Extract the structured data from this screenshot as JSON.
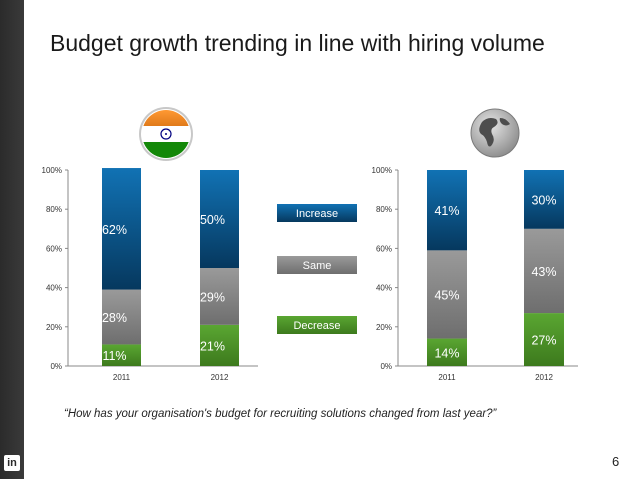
{
  "slide": {
    "title": "Budget growth trending in line with hiring volume",
    "quote": "“How has your organisation's budget for recruiting solutions changed from last year?”",
    "page_number": "6",
    "logo_text": "in"
  },
  "legend": {
    "increase": "Increase",
    "same": "Same",
    "decrease": "Decrease"
  },
  "colors": {
    "increase": "#0b5a8f",
    "same": "#8c8c8c",
    "decrease": "#4e9628"
  },
  "chart_data": [
    {
      "type": "bar",
      "stacked": true,
      "percent": true,
      "region": "India",
      "categories": [
        "2011",
        "2012"
      ],
      "series": [
        {
          "name": "Decrease",
          "values": [
            11,
            21
          ]
        },
        {
          "name": "Same",
          "values": [
            28,
            29
          ]
        },
        {
          "name": "Increase",
          "values": [
            62,
            50
          ]
        }
      ],
      "ylim": [
        0,
        100
      ],
      "yticks": [
        "0%",
        "20%",
        "40%",
        "60%",
        "80%",
        "100%"
      ]
    },
    {
      "type": "bar",
      "stacked": true,
      "percent": true,
      "region": "Global",
      "categories": [
        "2011",
        "2012"
      ],
      "series": [
        {
          "name": "Decrease",
          "values": [
            14,
            27
          ]
        },
        {
          "name": "Same",
          "values": [
            45,
            43
          ]
        },
        {
          "name": "Increase",
          "values": [
            41,
            30
          ]
        }
      ],
      "ylim": [
        0,
        100
      ],
      "yticks": [
        "0%",
        "20%",
        "40%",
        "60%",
        "80%",
        "100%"
      ]
    }
  ]
}
